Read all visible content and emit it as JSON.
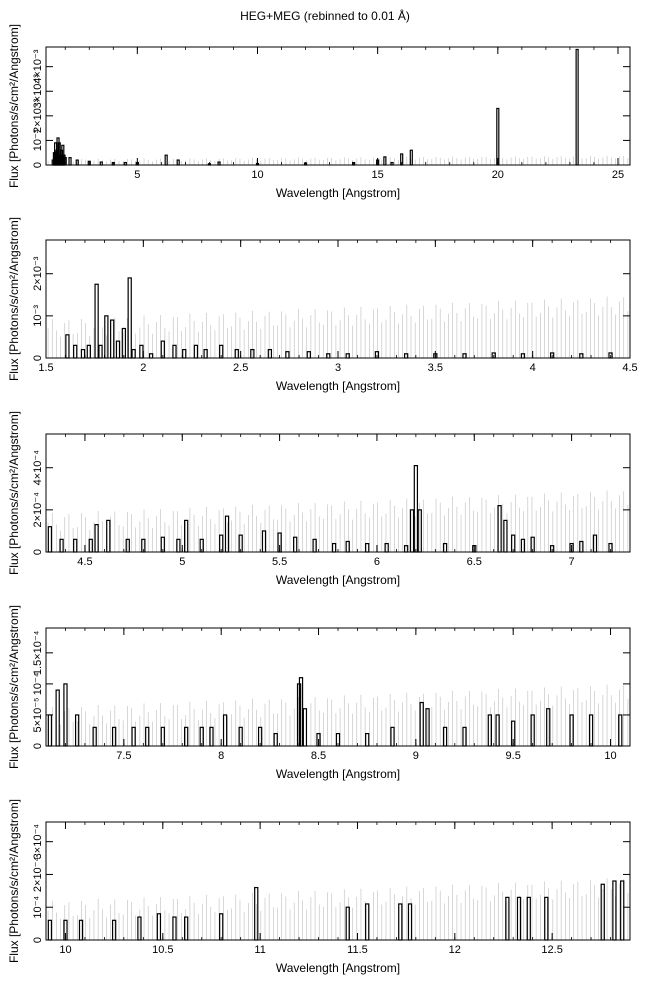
{
  "figure": {
    "title": "HEG+MEG (rebinned to 0.01 Å)"
  },
  "chart_data": [
    {
      "type": "bar",
      "title": "HEG+MEG (rebinned to 0.01 Å)",
      "xlabel": "Wavelength [Angstrom]",
      "ylabel": "Flux [Photons/s/cm²/Angstrom]",
      "xlim": [
        1.2,
        25.5
      ],
      "ylim": [
        0,
        0.0048
      ],
      "xticks": [
        "5",
        "10",
        "15",
        "20",
        "25"
      ],
      "xtick_values": [
        5,
        10,
        15,
        20,
        25
      ],
      "yticks": [
        "0",
        "10⁻³",
        "2×10⁻³",
        "3×10⁻³",
        "4×10⁻³"
      ],
      "ytick_values": [
        0,
        0.001,
        0.002,
        0.003,
        0.004
      ],
      "grid": false,
      "x": [
        1.5,
        1.55,
        1.6,
        1.65,
        1.7,
        1.75,
        1.8,
        1.85,
        1.9,
        1.95,
        2.0,
        2.2,
        2.5,
        3.0,
        3.5,
        4.0,
        4.5,
        5.0,
        6.2,
        6.7,
        8.0,
        8.4,
        10.0,
        12.0,
        14.0,
        15.0,
        15.3,
        15.6,
        16.0,
        16.4,
        20.0,
        23.3
      ],
      "values": [
        0.0002,
        0.0005,
        0.0009,
        0.0006,
        0.0011,
        0.0009,
        0.0004,
        0.0006,
        0.0008,
        0.0004,
        0.0003,
        0.0003,
        0.0002,
        0.00015,
        0.00012,
        0.0001,
        0.0001,
        0.0001,
        0.0004,
        0.0002,
        5e-05,
        0.00012,
        6e-05,
        8e-05,
        0.0001,
        0.0002,
        0.00033,
        0.0001,
        0.00045,
        0.0006,
        0.0023,
        0.0047
      ]
    },
    {
      "type": "bar",
      "xlabel": "Wavelength [Angstrom]",
      "ylabel": "Flux [Photons/s/cm²/Angstrom]",
      "xlim": [
        1.5,
        4.5
      ],
      "ylim": [
        0,
        0.0028
      ],
      "xticks": [
        "1.5",
        "2",
        "2.5",
        "3",
        "3.5",
        "4",
        "4.5"
      ],
      "xtick_values": [
        1.5,
        2,
        2.5,
        3,
        3.5,
        4,
        4.5
      ],
      "yticks": [
        "0",
        "10⁻³",
        "2×10⁻³"
      ],
      "ytick_values": [
        0,
        0.001,
        0.002
      ],
      "grid": false,
      "x": [
        1.61,
        1.65,
        1.69,
        1.72,
        1.76,
        1.78,
        1.81,
        1.84,
        1.87,
        1.9,
        1.93,
        1.95,
        1.99,
        2.04,
        2.1,
        2.16,
        2.21,
        2.27,
        2.32,
        2.4,
        2.48,
        2.56,
        2.65,
        2.74,
        2.85,
        2.95,
        3.05,
        3.2,
        3.35,
        3.5,
        3.65,
        3.8,
        3.95,
        4.1,
        4.25,
        4.4
      ],
      "values": [
        0.00055,
        0.0003,
        0.0002,
        0.0003,
        0.00175,
        0.0003,
        0.001,
        0.0009,
        0.0004,
        0.0007,
        0.0019,
        0.0002,
        0.0003,
        0.0001,
        0.0004,
        0.0003,
        0.0002,
        0.0003,
        0.0002,
        0.0003,
        0.0002,
        0.0002,
        0.0002,
        0.00015,
        0.00015,
        0.0001,
        0.0001,
        0.00015,
        0.0001,
        0.0001,
        0.0001,
        0.00012,
        0.0001,
        0.00012,
        0.0001,
        0.00012
      ]
    },
    {
      "type": "bar",
      "xlabel": "Wavelength [Angstrom]",
      "ylabel": "Flux [Photons/s/cm²/Angstrom]",
      "xlim": [
        4.3,
        7.3
      ],
      "ylim": [
        0,
        0.00056
      ],
      "xticks": [
        "4.5",
        "5",
        "5.5",
        "6",
        "6.5",
        "7"
      ],
      "xtick_values": [
        4.5,
        5,
        5.5,
        6,
        6.5,
        7
      ],
      "yticks": [
        "0",
        "2×10⁻⁴",
        "4×10⁻⁴"
      ],
      "ytick_values": [
        0,
        0.0002,
        0.0004
      ],
      "grid": false,
      "x": [
        4.32,
        4.38,
        4.45,
        4.53,
        4.56,
        4.62,
        4.72,
        4.8,
        4.9,
        4.98,
        5.02,
        5.1,
        5.2,
        5.23,
        5.3,
        5.42,
        5.5,
        5.58,
        5.68,
        5.78,
        5.85,
        5.95,
        6.05,
        6.15,
        6.18,
        6.2,
        6.22,
        6.35,
        6.5,
        6.63,
        6.66,
        6.7,
        6.75,
        6.8,
        6.9,
        7.0,
        7.05,
        7.12,
        7.2
      ],
      "values": [
        0.00012,
        6e-05,
        6e-05,
        6e-05,
        0.00013,
        0.00015,
        6e-05,
        6e-05,
        7e-05,
        6e-05,
        0.00015,
        6e-05,
        8e-05,
        0.00017,
        8e-05,
        0.0001,
        9e-05,
        7e-05,
        6e-05,
        4e-05,
        5e-05,
        4e-05,
        4e-05,
        3e-05,
        0.0002,
        0.00041,
        0.0002,
        4e-05,
        3e-05,
        0.00022,
        0.00015,
        8e-05,
        6e-05,
        7e-05,
        3e-05,
        4e-05,
        5e-05,
        8e-05,
        4e-05
      ]
    },
    {
      "type": "bar",
      "xlabel": "Wavelength [Angstrom]",
      "ylabel": "Flux [Photons/s/cm²/Angstrom]",
      "xlim": [
        7.1,
        10.1
      ],
      "ylim": [
        0,
        0.00019
      ],
      "xticks": [
        "7.5",
        "8",
        "8.5",
        "9",
        "9.5",
        "10"
      ],
      "xtick_values": [
        7.5,
        8,
        8.5,
        9,
        9.5,
        10
      ],
      "yticks": [
        "0",
        "5×10⁻⁵",
        "10⁻⁴",
        "1.5×10⁻⁴"
      ],
      "ytick_values": [
        0,
        5e-05,
        0.0001,
        0.00015
      ],
      "grid": false,
      "x": [
        7.12,
        7.16,
        7.2,
        7.26,
        7.35,
        7.45,
        7.55,
        7.62,
        7.7,
        7.82,
        7.9,
        7.95,
        8.02,
        8.1,
        8.2,
        8.28,
        8.4,
        8.41,
        8.43,
        8.5,
        8.6,
        8.75,
        8.88,
        9.03,
        9.06,
        9.15,
        9.25,
        9.38,
        9.42,
        9.5,
        9.6,
        9.68,
        9.8,
        9.9,
        10.05
      ],
      "values": [
        5e-05,
        9e-05,
        0.0001,
        5e-05,
        3e-05,
        3e-05,
        3e-05,
        3e-05,
        3e-05,
        3e-05,
        3e-05,
        3e-05,
        5e-05,
        3e-05,
        3e-05,
        2e-05,
        0.0001,
        0.00011,
        6e-05,
        2e-05,
        2e-05,
        2e-05,
        3e-05,
        7e-05,
        6e-05,
        3e-05,
        3e-05,
        5e-05,
        5e-05,
        4e-05,
        5e-05,
        6e-05,
        5e-05,
        5e-05,
        5e-05
      ]
    },
    {
      "type": "bar",
      "xlabel": "Wavelength [Angstrom]",
      "ylabel": "Flux [Photons/s/cm²/Angstrom]",
      "xlim": [
        9.9,
        12.9
      ],
      "ylim": [
        0,
        0.00036
      ],
      "xticks": [
        "10",
        "10.5",
        "11",
        "11.5",
        "12",
        "12.5"
      ],
      "xtick_values": [
        10,
        10.5,
        11,
        11.5,
        12,
        12.5
      ],
      "yticks": [
        "0",
        "10⁻⁴",
        "2×10⁻⁴",
        "3×10⁻⁴"
      ],
      "ytick_values": [
        0,
        0.0001,
        0.0002,
        0.0003
      ],
      "grid": false,
      "x": [
        9.92,
        10.0,
        10.08,
        10.25,
        10.38,
        10.48,
        10.56,
        10.62,
        10.8,
        10.98,
        11.45,
        11.55,
        11.72,
        11.77,
        12.27,
        12.33,
        12.38,
        12.47,
        12.76,
        12.82,
        12.86
      ],
      "values": [
        6e-05,
        6e-05,
        6e-05,
        6e-05,
        7e-05,
        8e-05,
        7e-05,
        7e-05,
        8e-05,
        0.00016,
        0.0001,
        0.00011,
        0.00011,
        0.00011,
        0.00013,
        0.00013,
        0.00013,
        0.00013,
        0.00017,
        0.00018,
        0.00018
      ]
    }
  ]
}
